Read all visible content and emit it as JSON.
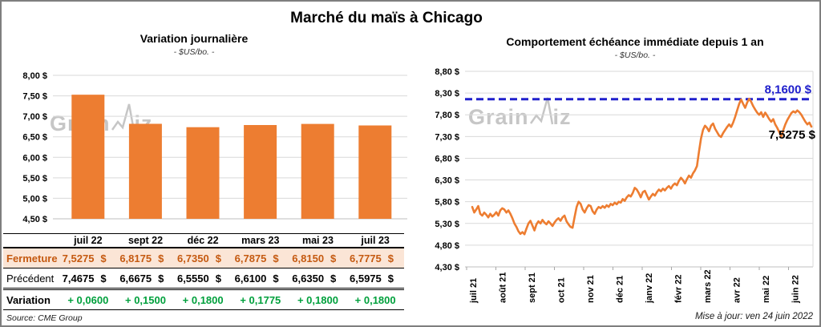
{
  "page": {
    "title": "Marché du maïs à Chicago",
    "watermark": {
      "pre": "Grain",
      "post": "iz"
    },
    "source": "Source: CME Group",
    "updated": "Mise à jour: ven 24 juin 2022"
  },
  "colors": {
    "orange": "#ED7D31",
    "blue": "#2020CC",
    "green": "#00A03C",
    "fermeture_text": "#C55A11",
    "fermeture_bg": "#FBE5D6",
    "grid": "#D9D9D9",
    "axis": "#BFBFBF",
    "tick": "#A6A6A6"
  },
  "table": {
    "header": [
      "juil 22",
      "sept 22",
      "déc 22",
      "mars 23",
      "mai 23",
      "juil 23"
    ],
    "rows": [
      {
        "label": "Fermeture",
        "style": "fermeture",
        "unit": "$",
        "values": [
          "7,5275",
          "6,8175",
          "6,7350",
          "6,7875",
          "6,8150",
          "6,7775"
        ]
      },
      {
        "label": "Précédent",
        "style": "precedent",
        "unit": "$",
        "values": [
          "7,4675",
          "6,6675",
          "6,5550",
          "6,6100",
          "6,6350",
          "6,5975"
        ]
      },
      {
        "label": "Variation",
        "style": "variation",
        "unit": "",
        "values": [
          "+ 0,0600",
          "+ 0,1500",
          "+ 0,1800",
          "+ 0,1775",
          "+ 0,1800",
          "+ 0,1800"
        ]
      }
    ]
  },
  "chart_data": [
    {
      "type": "bar",
      "title": "Variation journalière",
      "subtitle": "- $US/bo. -",
      "categories": [
        "juil 22",
        "sept 22",
        "déc 22",
        "mars 23",
        "mai 23",
        "juil 23"
      ],
      "values": [
        7.5275,
        6.8175,
        6.735,
        6.7875,
        6.815,
        6.7775
      ],
      "ylim": [
        4.5,
        8.0
      ],
      "ytick_step": 0.5,
      "yticks": [
        "8,00 $",
        "7,50 $",
        "7,00 $",
        "6,50 $",
        "6,00 $",
        "5,50 $",
        "5,00 $",
        "4,50 $"
      ],
      "grid": true,
      "legend": "none"
    },
    {
      "type": "line",
      "title": "Comportement échéance immédiate depuis 1 an",
      "subtitle": "- $US/bo. -",
      "x_labels": [
        "juil 21",
        "août 21",
        "sept 21",
        "oct 21",
        "nov 21",
        "déc 21",
        "janv 22",
        "févr 22",
        "mars 22",
        "avr 22",
        "mai 22",
        "juin 22"
      ],
      "ylim": [
        4.3,
        8.8
      ],
      "ytick_step": 0.5,
      "yticks": [
        "8,80 $",
        "8,30 $",
        "7,80 $",
        "7,30 $",
        "6,80 $",
        "6,30 $",
        "5,80 $",
        "5,30 $",
        "4,80 $",
        "4,30 $"
      ],
      "grid": true,
      "legend": "none",
      "reference_line": {
        "value": 8.16,
        "label": "8,1600 $",
        "style": "dashed"
      },
      "last_value": 7.5275,
      "last_label": "7,5275 $",
      "values": [
        5.68,
        5.55,
        5.62,
        5.7,
        5.52,
        5.48,
        5.55,
        5.5,
        5.44,
        5.52,
        5.46,
        5.5,
        5.56,
        5.48,
        5.6,
        5.65,
        5.62,
        5.55,
        5.6,
        5.52,
        5.42,
        5.3,
        5.22,
        5.12,
        5.06,
        5.1,
        5.05,
        5.18,
        5.3,
        5.36,
        5.25,
        5.14,
        5.28,
        5.35,
        5.3,
        5.38,
        5.32,
        5.28,
        5.35,
        5.3,
        5.24,
        5.32,
        5.38,
        5.42,
        5.36,
        5.44,
        5.48,
        5.35,
        5.28,
        5.22,
        5.2,
        5.45,
        5.68,
        5.8,
        5.75,
        5.62,
        5.55,
        5.65,
        5.72,
        5.7,
        5.58,
        5.52,
        5.62,
        5.68,
        5.65,
        5.7,
        5.66,
        5.72,
        5.68,
        5.75,
        5.72,
        5.78,
        5.74,
        5.8,
        5.78,
        5.86,
        5.82,
        5.9,
        5.95,
        5.92,
        6.0,
        6.12,
        6.08,
        6.0,
        5.9,
        6.02,
        6.05,
        5.95,
        5.85,
        5.92,
        5.98,
        5.94,
        6.02,
        6.08,
        6.04,
        6.1,
        6.06,
        6.12,
        6.16,
        6.1,
        6.18,
        6.22,
        6.18,
        6.28,
        6.35,
        6.3,
        6.22,
        6.32,
        6.4,
        6.35,
        6.45,
        6.52,
        6.62,
        6.95,
        7.25,
        7.45,
        7.55,
        7.5,
        7.42,
        7.55,
        7.6,
        7.48,
        7.4,
        7.32,
        7.29,
        7.38,
        7.45,
        7.52,
        7.58,
        7.52,
        7.62,
        7.75,
        7.9,
        8.05,
        8.15,
        8.05,
        7.96,
        8.08,
        8.17,
        8.1,
        8.0,
        7.92,
        7.85,
        7.8,
        7.86,
        7.75,
        7.85,
        7.78,
        7.7,
        7.64,
        7.7,
        7.58,
        7.5,
        7.4,
        7.3,
        7.45,
        7.58,
        7.68,
        7.76,
        7.84,
        7.88,
        7.85,
        7.9,
        7.86,
        7.8,
        7.72,
        7.64,
        7.58,
        7.62,
        7.5275
      ]
    }
  ]
}
